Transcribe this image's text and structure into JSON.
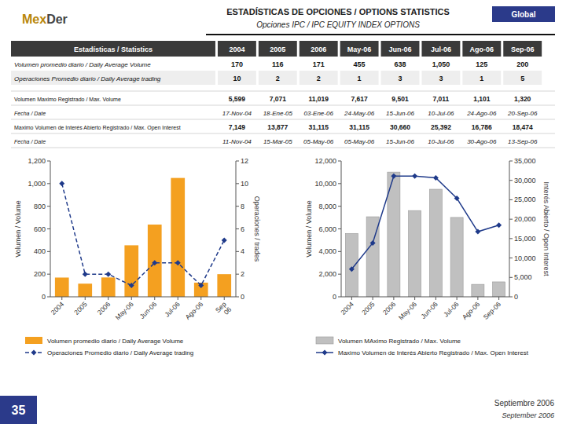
{
  "header": {
    "logo": [
      "Mex",
      "Der"
    ],
    "title": "ESTADÍSTICAS DE OPCIONES / OPTIONS STATISTICS",
    "subtitle": "Opciones IPC / IPC EQUITY INDEX OPTIONS",
    "badge": "Global"
  },
  "tables": [
    {
      "headers": [
        "Estadísticas / Statistics",
        "2004",
        "2005",
        "2006",
        "May-06",
        "Jun-06",
        "Jul-06",
        "Ago-06",
        "Sep-06"
      ],
      "rows": [
        [
          "Volumen promedio diario / Daily Average Volume",
          "170",
          "116",
          "171",
          "455",
          "638",
          "1,050",
          "125",
          "200"
        ],
        [
          "Operaciones Promedio diario / Daily Average trading",
          "10",
          "2",
          "2",
          "1",
          "3",
          "3",
          "1",
          "5"
        ]
      ]
    },
    {
      "rows": [
        [
          "Volumen Maximo Registrado / Max. Volume",
          "5,599",
          "7,071",
          "11,019",
          "7,617",
          "9,501",
          "7,011",
          "1,101",
          "1,320"
        ],
        [
          "Fecha / Date",
          "17-Nov-04",
          "18-Ene-05",
          "03-Ene-06",
          "24-May-06",
          "15-Jun-06",
          "10-Jul-06",
          "24-Ago-06",
          "20-Sep-06"
        ],
        [
          "Maximo Volumen de Interés Abierto Registrado / Max. Open Interest",
          "7,149",
          "13,877",
          "31,115",
          "31,115",
          "30,660",
          "25,392",
          "16,786",
          "18,474"
        ],
        [
          "Fecha / Date",
          "11-Nov-04",
          "15-Mar-05",
          "05-May-06",
          "05-May-06",
          "15-Jun-06",
          "10-Jul-06",
          "30-Ago-06",
          "13-Sep-06"
        ]
      ]
    }
  ],
  "footer": {
    "page_number": "35",
    "lines": [
      "Septiembre 2006",
      "September 2006"
    ]
  },
  "chart_data": [
    {
      "type": "bar",
      "categories": [
        "2004",
        "2005",
        "2006",
        "May-06",
        "Jun-06",
        "Jul-06",
        "Ago-06",
        "Sep\n06"
      ],
      "ylabel": "Volumen / Volume",
      "y2label": "Operaciones / trades",
      "ylim": [
        0,
        1200
      ],
      "yticks": [
        0,
        200,
        400,
        600,
        800,
        {
          "value": 1000,
          "label": "1,000"
        },
        {
          "value": 1200,
          "label": "1,200"
        }
      ],
      "y2lim": [
        0,
        12
      ],
      "y2ticks": [
        0,
        2,
        4,
        6,
        8,
        10,
        12
      ],
      "grid": false,
      "legend": "bottom",
      "series": [
        {
          "name": "Volumen promedio diario / Daily Average Volume",
          "type": "bar",
          "color": "#F4A020",
          "values": [
            170,
            116,
            171,
            455,
            638,
            1050,
            125,
            200
          ]
        },
        {
          "name": "Operaciones Promedio diario / Daily Average trading",
          "type": "line",
          "axis": "y2",
          "color": "#1F3A8A",
          "line_style": "dashed",
          "marker": "diamond",
          "values": [
            10,
            2,
            2,
            1,
            3,
            3,
            1,
            5
          ]
        }
      ]
    },
    {
      "type": "bar",
      "categories": [
        "2004",
        "2005",
        "2006",
        "May-06",
        "Jun-06",
        "Jul-06",
        "Ago-06",
        "Sep-06"
      ],
      "ylabel": "Volumen / Volume",
      "y2label": "Interés Abierto / Open Interest",
      "ylim": [
        0,
        12000
      ],
      "yticks": [
        0,
        {
          "value": 2000,
          "label": "2,000"
        },
        {
          "value": 4000,
          "label": "4,000"
        },
        {
          "value": 6000,
          "label": "6,000"
        },
        {
          "value": 8000,
          "label": "8,000"
        },
        {
          "value": 10000,
          "label": "10,000"
        },
        {
          "value": 12000,
          "label": "12,000"
        }
      ],
      "y2lim": [
        0,
        35000
      ],
      "y2ticks": [
        0,
        {
          "value": 5000,
          "label": "5,000"
        },
        {
          "value": 10000,
          "label": "10,000"
        },
        {
          "value": 15000,
          "label": "15,000"
        },
        {
          "value": 20000,
          "label": "20,000"
        },
        {
          "value": 25000,
          "label": "25,000"
        },
        {
          "value": 30000,
          "label": "30,000"
        },
        {
          "value": 35000,
          "label": "35,000"
        }
      ],
      "grid": false,
      "legend": "bottom",
      "series": [
        {
          "name": "Volumen MAximo Registrado / Max. Volume",
          "type": "bar",
          "color": "#C0C0C0",
          "values": [
            5599,
            7071,
            11019,
            7617,
            9501,
            7011,
            1101,
            1320
          ]
        },
        {
          "name": "Maximo Volumen de Interés Abierto Registrado / Max. Open Interest",
          "type": "line",
          "axis": "y2",
          "color": "#1F3A8A",
          "line_style": "solid",
          "marker": "diamond",
          "values": [
            7149,
            13877,
            31115,
            31115,
            30660,
            25392,
            16786,
            18474
          ]
        }
      ]
    }
  ]
}
